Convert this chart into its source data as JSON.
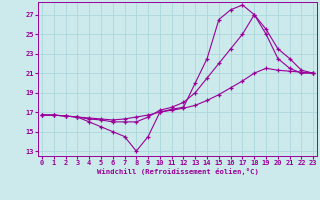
{
  "bg_color": "#cce9eb",
  "line_color": "#990099",
  "grid_color": "#aad8dc",
  "xlabel": "Windchill (Refroidissement éolien,°C)",
  "ylabel_ticks": [
    13,
    15,
    17,
    19,
    21,
    23,
    25,
    27
  ],
  "xlabel_ticks": [
    0,
    1,
    2,
    3,
    4,
    5,
    6,
    7,
    8,
    9,
    10,
    11,
    12,
    13,
    14,
    15,
    16,
    17,
    18,
    19,
    20,
    21,
    22,
    23
  ],
  "xlim": [
    -0.3,
    23.3
  ],
  "ylim": [
    12.5,
    28.3
  ],
  "lines": [
    {
      "x": [
        0,
        1,
        2,
        3,
        4,
        5,
        6,
        7,
        8,
        9,
        10,
        11,
        12,
        13,
        14,
        15,
        16,
        17,
        18,
        19,
        20,
        21,
        22,
        23
      ],
      "y": [
        16.7,
        16.7,
        16.6,
        16.5,
        16.0,
        15.5,
        15.0,
        14.5,
        13.0,
        14.5,
        17.0,
        17.3,
        17.5,
        20.0,
        22.5,
        26.5,
        27.5,
        28.0,
        27.0,
        25.0,
        22.5,
        21.5,
        21.0,
        21.0
      ]
    },
    {
      "x": [
        0,
        1,
        2,
        3,
        4,
        5,
        6,
        7,
        8,
        9,
        10,
        11,
        12,
        13,
        14,
        15,
        16,
        17,
        18,
        19,
        20,
        21,
        22,
        23
      ],
      "y": [
        16.7,
        16.7,
        16.6,
        16.5,
        16.3,
        16.2,
        16.0,
        16.0,
        16.0,
        16.5,
        17.2,
        17.5,
        18.0,
        19.0,
        20.5,
        22.0,
        23.5,
        25.0,
        27.0,
        25.5,
        23.5,
        22.5,
        21.3,
        21.0
      ]
    },
    {
      "x": [
        0,
        1,
        2,
        3,
        4,
        5,
        6,
        7,
        8,
        9,
        10,
        11,
        12,
        13,
        14,
        15,
        16,
        17,
        18,
        19,
        20,
        21,
        22,
        23
      ],
      "y": [
        16.7,
        16.7,
        16.6,
        16.5,
        16.4,
        16.3,
        16.2,
        16.3,
        16.5,
        16.7,
        17.0,
        17.2,
        17.4,
        17.7,
        18.2,
        18.8,
        19.5,
        20.2,
        21.0,
        21.5,
        21.3,
        21.2,
        21.1,
        21.0
      ]
    }
  ]
}
